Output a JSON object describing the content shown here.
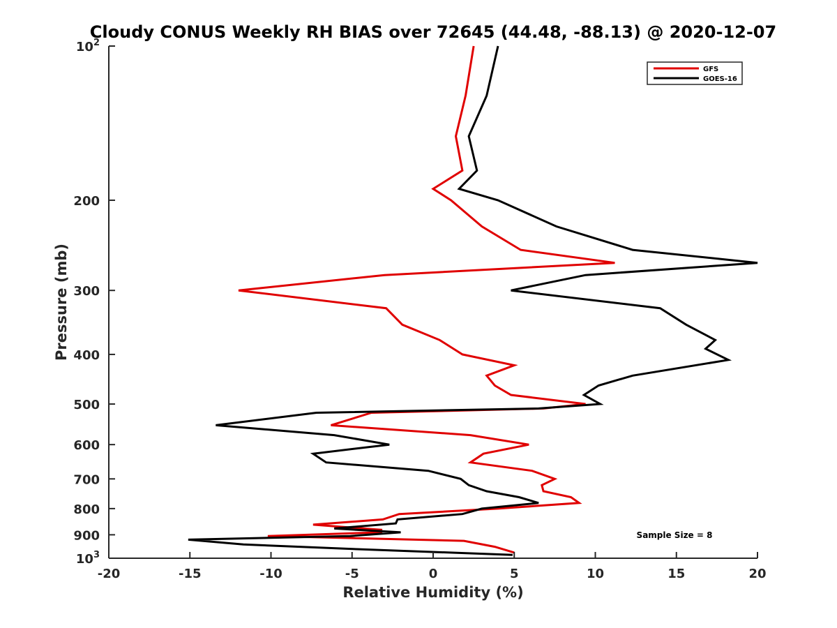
{
  "chart_data": {
    "type": "line",
    "title": "Cloudy CONUS Weekly RH BIAS over 72645 (44.48, -88.13) @ 2020-12-07",
    "xlabel": "Relative Humidity (%)",
    "ylabel": "Pressure (mb)",
    "xlim": [
      -20,
      20
    ],
    "ylim": [
      1000,
      100
    ],
    "yscale": "log",
    "grid": false,
    "legend_position": "top-right",
    "x_ticks": [
      "-20",
      "-15",
      "-10",
      "-5",
      "0",
      "5",
      "10",
      "15",
      "20"
    ],
    "x_tick_values": [
      -20,
      -15,
      -10,
      -5,
      0,
      5,
      10,
      15,
      20
    ],
    "y_ticks": [
      {
        "value": 100,
        "base": "10",
        "exp": "2"
      },
      {
        "value": 200,
        "label": "200"
      },
      {
        "value": 300,
        "label": "300"
      },
      {
        "value": 400,
        "label": "400"
      },
      {
        "value": 500,
        "label": "500"
      },
      {
        "value": 600,
        "label": "600"
      },
      {
        "value": 700,
        "label": "700"
      },
      {
        "value": 800,
        "label": "800"
      },
      {
        "value": 900,
        "label": "900"
      },
      {
        "value": 1000,
        "base": "10",
        "exp": "3"
      }
    ],
    "annotation": "Sample Size = 8",
    "series": [
      {
        "name": "GFS",
        "color": "#e00000",
        "points": [
          [
            2.5,
            100
          ],
          [
            2.0,
            125
          ],
          [
            1.4,
            150
          ],
          [
            1.8,
            175
          ],
          [
            0.0,
            190
          ],
          [
            1.1,
            200
          ],
          [
            3.0,
            225
          ],
          [
            5.4,
            250
          ],
          [
            11.2,
            265
          ],
          [
            -3.0,
            280
          ],
          [
            -12.0,
            300
          ],
          [
            -2.9,
            325
          ],
          [
            -1.9,
            350
          ],
          [
            0.4,
            375
          ],
          [
            1.8,
            400
          ],
          [
            5.0,
            420
          ],
          [
            3.3,
            440
          ],
          [
            3.8,
            460
          ],
          [
            4.8,
            480
          ],
          [
            9.4,
            500
          ],
          [
            6.8,
            510
          ],
          [
            -3.8,
            520
          ],
          [
            -6.3,
            550
          ],
          [
            2.3,
            575
          ],
          [
            5.9,
            600
          ],
          [
            3.1,
            625
          ],
          [
            2.3,
            650
          ],
          [
            6.1,
            675
          ],
          [
            7.5,
            700
          ],
          [
            6.7,
            720
          ],
          [
            6.8,
            740
          ],
          [
            8.5,
            760
          ],
          [
            9.0,
            780
          ],
          [
            4.0,
            800
          ],
          [
            -2.1,
            820
          ],
          [
            -3.1,
            840
          ],
          [
            -7.4,
            860
          ],
          [
            -3.2,
            880
          ],
          [
            -3.2,
            890
          ],
          [
            -10.2,
            905
          ],
          [
            1.9,
            925
          ],
          [
            3.8,
            950
          ],
          [
            5.0,
            975
          ]
        ]
      },
      {
        "name": "GOES-16",
        "color": "#000000",
        "points": [
          [
            4.0,
            100
          ],
          [
            3.3,
            125
          ],
          [
            2.2,
            150
          ],
          [
            2.7,
            175
          ],
          [
            1.6,
            190
          ],
          [
            4.0,
            200
          ],
          [
            7.6,
            225
          ],
          [
            12.3,
            250
          ],
          [
            20.0,
            265
          ],
          [
            9.4,
            280
          ],
          [
            4.8,
            300
          ],
          [
            14.0,
            325
          ],
          [
            15.6,
            350
          ],
          [
            17.4,
            375
          ],
          [
            16.8,
            390
          ],
          [
            18.2,
            410
          ],
          [
            12.3,
            440
          ],
          [
            10.2,
            460
          ],
          [
            9.3,
            480
          ],
          [
            10.3,
            500
          ],
          [
            6.5,
            510
          ],
          [
            -7.2,
            520
          ],
          [
            -13.4,
            550
          ],
          [
            -6.1,
            575
          ],
          [
            -2.7,
            600
          ],
          [
            -7.4,
            625
          ],
          [
            -6.6,
            650
          ],
          [
            -0.3,
            675
          ],
          [
            1.7,
            700
          ],
          [
            2.2,
            720
          ],
          [
            3.3,
            740
          ],
          [
            5.3,
            760
          ],
          [
            6.5,
            780
          ],
          [
            3.0,
            800
          ],
          [
            1.8,
            820
          ],
          [
            -2.2,
            840
          ],
          [
            -2.3,
            855
          ],
          [
            -6.1,
            875
          ],
          [
            -2.0,
            890
          ],
          [
            -5.1,
            905
          ],
          [
            -15.1,
            920
          ],
          [
            -11.7,
            940
          ],
          [
            -4.7,
            960
          ],
          [
            4.9,
            985
          ]
        ]
      }
    ]
  }
}
